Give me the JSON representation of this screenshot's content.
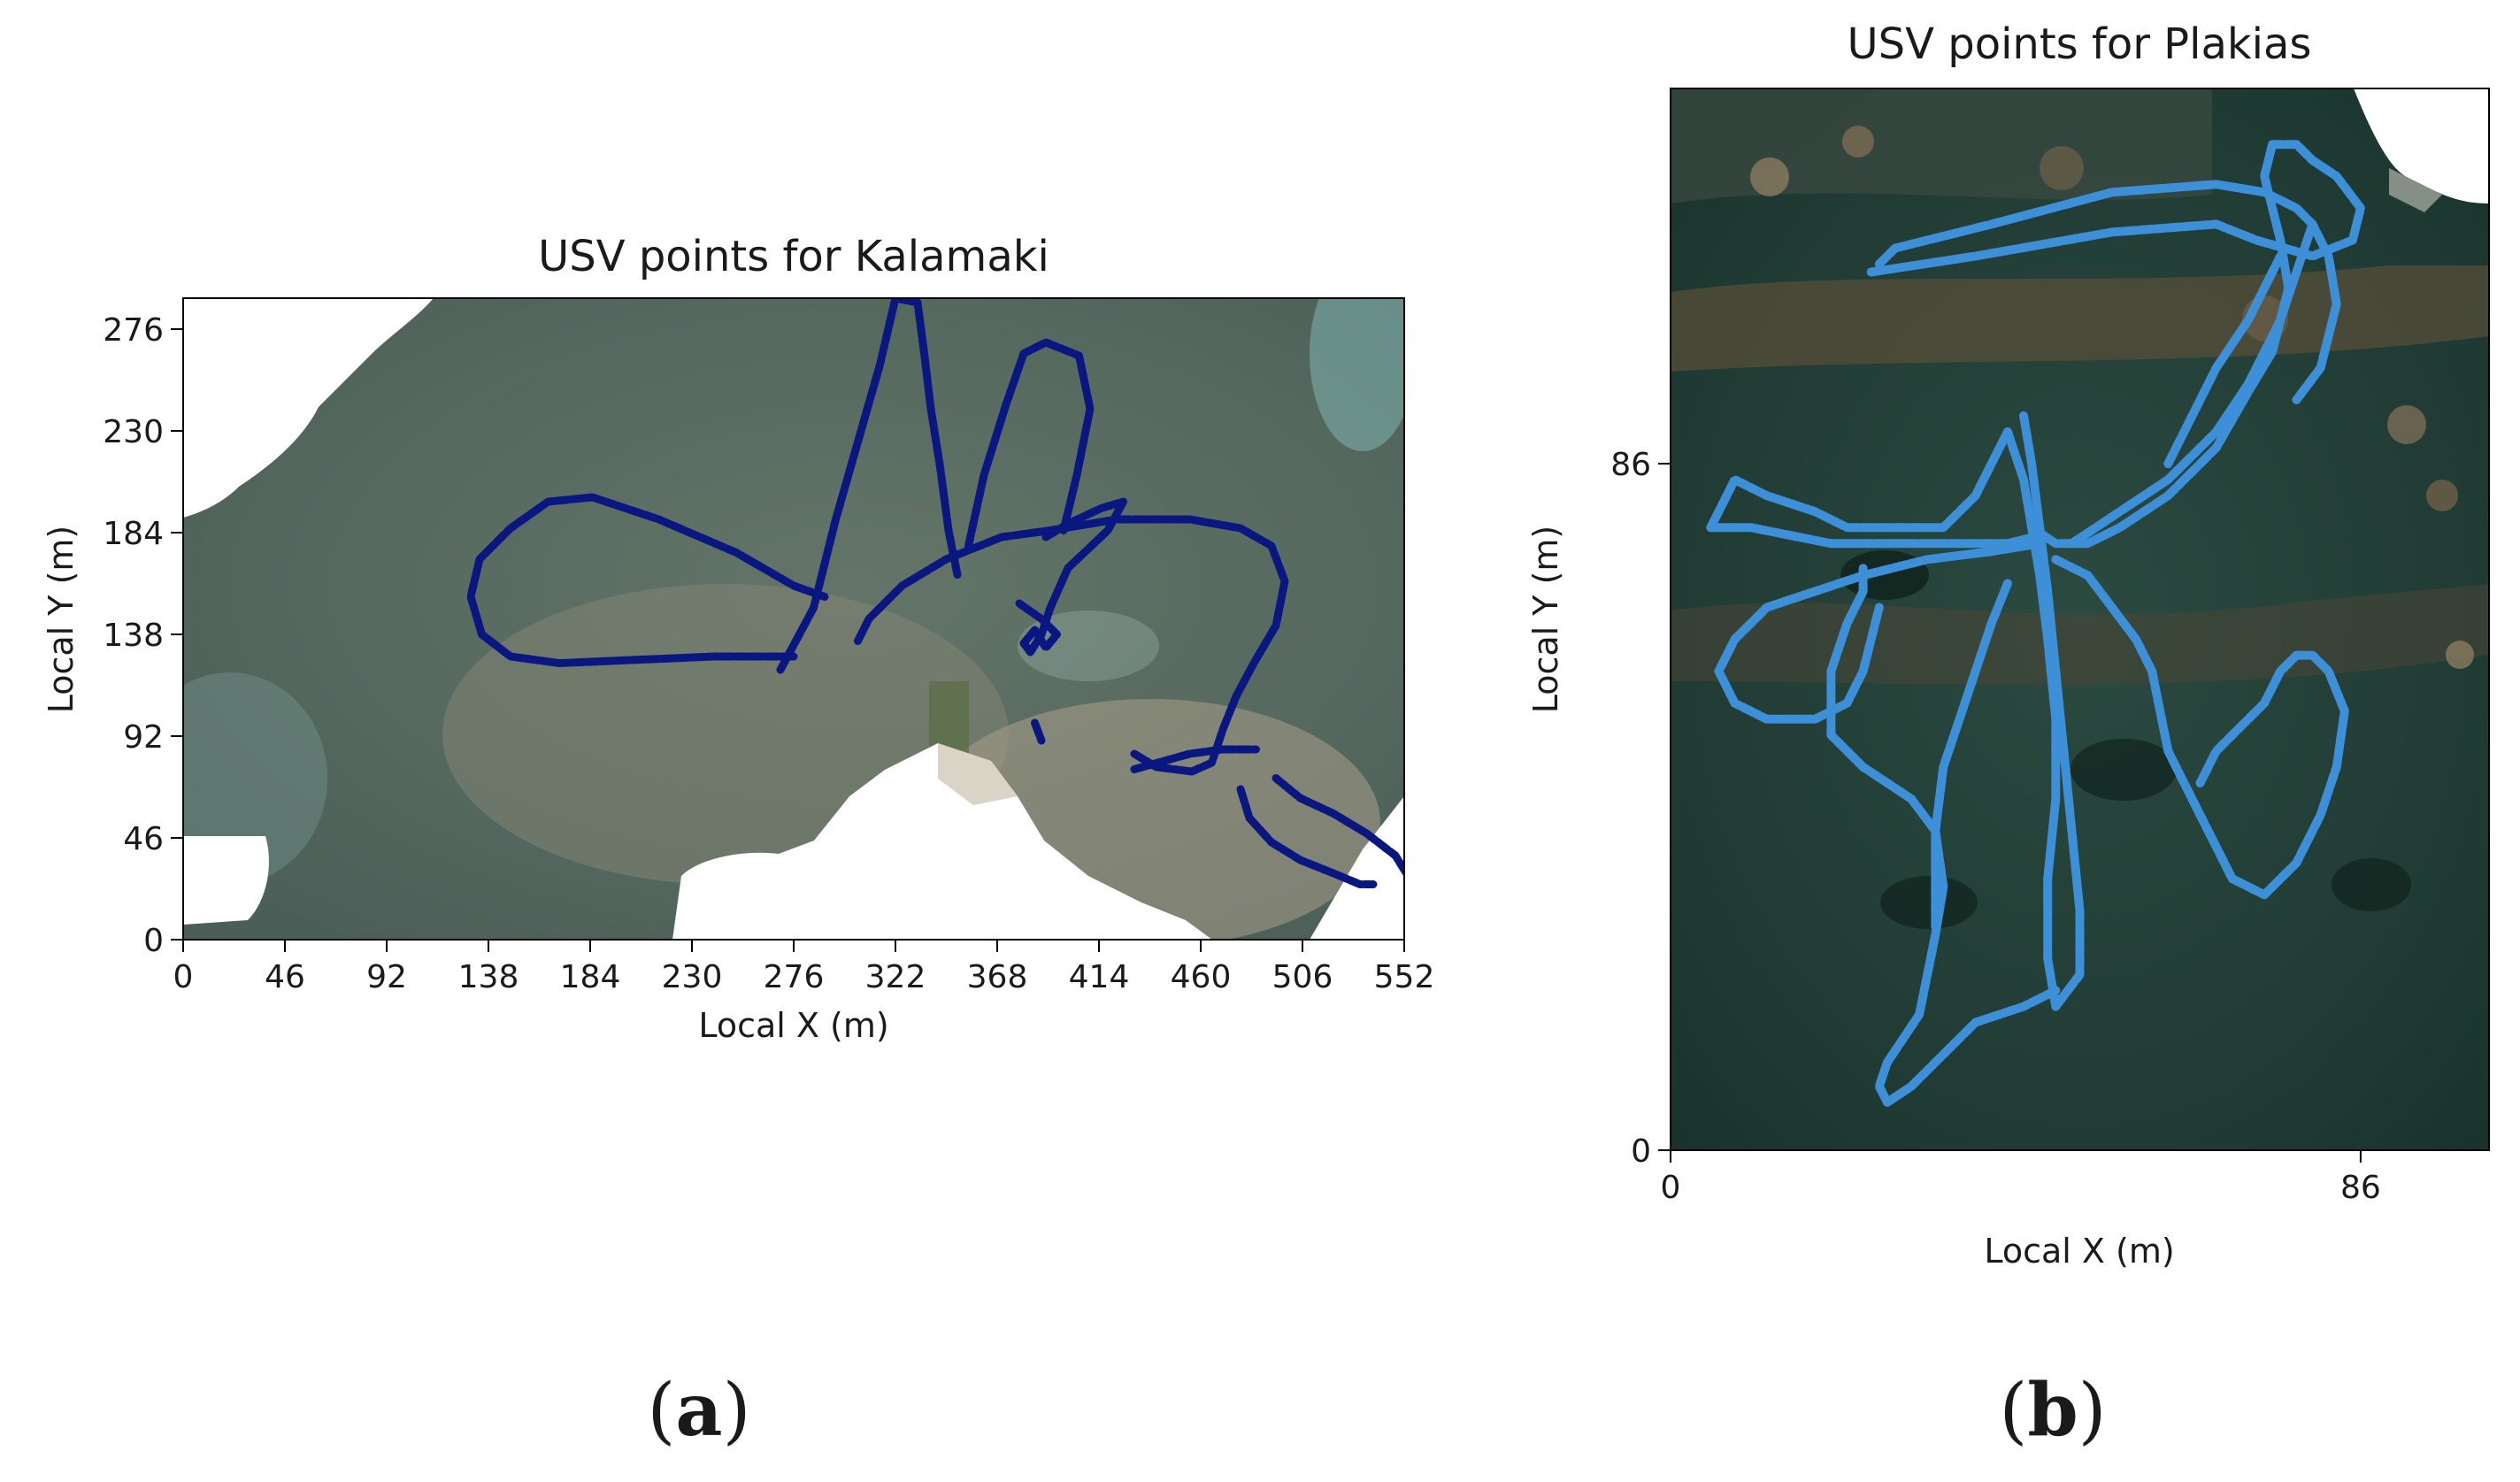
{
  "figure": {
    "panel_labels": [
      {
        "open": "(",
        "letter": "a",
        "close": ")"
      },
      {
        "open": "(",
        "letter": "b",
        "close": ")"
      }
    ]
  },
  "colors": {
    "kalamaki_track": "#0a1780",
    "plakias_track": "#3d8fd8",
    "land_white": "#ffffff",
    "sea_grey_green": "#56695f",
    "deep_water_green": "#1f3a33"
  },
  "chart_data": [
    {
      "type": "scatter",
      "title": "USV points for Kalamaki",
      "xlabel": "Local X (m)",
      "ylabel": "Local Y (m)",
      "xlim": [
        0,
        552
      ],
      "ylim": [
        0,
        290
      ],
      "xticks": [
        "0",
        "46",
        "92",
        "138",
        "184",
        "230",
        "276",
        "322",
        "368",
        "414",
        "460",
        "506",
        "552"
      ],
      "yticks": [
        "0",
        "46",
        "92",
        "138",
        "184",
        "230",
        "276"
      ],
      "background": "satellite image",
      "series": [
        {
          "color": "#0a1780",
          "paths": [
            [
              [
                276,
                128
              ],
              [
                240,
                128
              ],
              [
                170,
                125
              ],
              [
                148,
                128
              ],
              [
                135,
                138
              ],
              [
                130,
                155
              ],
              [
                134,
                172
              ],
              [
                148,
                186
              ],
              [
                165,
                198
              ],
              [
                185,
                200
              ],
              [
                215,
                190
              ],
              [
                250,
                175
              ],
              [
                276,
                160
              ],
              [
                290,
                155
              ]
            ],
            [
              [
                270,
                122
              ],
              [
                285,
                150
              ],
              [
                295,
                190
              ],
              [
                305,
                225
              ],
              [
                315,
                260
              ],
              [
                322,
                290
              ],
              [
                332,
                288
              ],
              [
                335,
                265
              ],
              [
                338,
                240
              ],
              [
                342,
                215
              ],
              [
                346,
                185
              ],
              [
                350,
                165
              ]
            ],
            [
              [
                355,
                178
              ],
              [
                362,
                210
              ],
              [
                372,
                242
              ],
              [
                380,
                265
              ],
              [
                390,
                270
              ],
              [
                405,
                264
              ],
              [
                410,
                240
              ],
              [
                404,
                210
              ],
              [
                398,
                185
              ]
            ],
            [
              [
                390,
                182
              ],
              [
                400,
                188
              ],
              [
                415,
                195
              ],
              [
                425,
                198
              ],
              [
                418,
                185
              ],
              [
                400,
                168
              ],
              [
                392,
                150
              ],
              [
                388,
                138
              ],
              [
                383,
                130
              ],
              [
                380,
                134
              ],
              [
                385,
                140
              ],
              [
                390,
                132
              ],
              [
                395,
                138
              ],
              [
                388,
                145
              ],
              [
                378,
                152
              ]
            ],
            [
              [
                305,
                135
              ],
              [
                310,
                145
              ],
              [
                325,
                160
              ],
              [
                345,
                172
              ],
              [
                370,
                182
              ],
              [
                392,
                185
              ],
              [
                422,
                190
              ],
              [
                455,
                190
              ],
              [
                478,
                186
              ],
              [
                492,
                178
              ],
              [
                498,
                162
              ],
              [
                494,
                142
              ],
              [
                484,
                125
              ],
              [
                476,
                110
              ],
              [
                470,
                95
              ],
              [
                465,
                80
              ],
              [
                456,
                76
              ],
              [
                440,
                78
              ],
              [
                430,
                84
              ]
            ],
            [
              [
                430,
                77
              ],
              [
                455,
                84
              ],
              [
                470,
                86
              ],
              [
                485,
                86
              ]
            ],
            [
              [
                478,
                68
              ],
              [
                482,
                55
              ],
              [
                492,
                44
              ],
              [
                505,
                36
              ],
              [
                520,
                30
              ],
              [
                532,
                25
              ],
              [
                538,
                25
              ]
            ],
            [
              [
                494,
                73
              ],
              [
                505,
                64
              ],
              [
                520,
                57
              ],
              [
                535,
                48
              ],
              [
                548,
                38
              ],
              [
                553,
                30
              ]
            ],
            [
              [
                385,
                98
              ],
              [
                388,
                90
              ]
            ]
          ]
        }
      ]
    },
    {
      "type": "scatter",
      "title": "USV points for Plakias",
      "xlabel": "Local X (m)",
      "ylabel": "Local Y (m)",
      "xlim": [
        0,
        102
      ],
      "ylim": [
        0,
        133
      ],
      "xticks": [
        "0",
        "86"
      ],
      "yticks": [
        "0",
        "86"
      ],
      "background": "satellite image",
      "series": [
        {
          "color": "#3d8fd8",
          "paths": [
            [
              [
                26,
                111
              ],
              [
                28,
                113
              ],
              [
                40,
                116
              ],
              [
                55,
                120
              ],
              [
                68,
                121
              ],
              [
                74,
                120
              ],
              [
                78,
                118
              ],
              [
                80,
                116
              ],
              [
                82,
                112
              ],
              [
                83,
                106
              ],
              [
                81,
                98
              ],
              [
                78,
                94
              ]
            ],
            [
              [
                25,
                110
              ],
              [
                38,
                112
              ],
              [
                55,
                115
              ],
              [
                68,
                116
              ],
              [
                73,
                114
              ],
              [
                80,
                112
              ],
              [
                85,
                114
              ],
              [
                86,
                118
              ],
              [
                83,
                122
              ],
              [
                80,
                124
              ],
              [
                78,
                126
              ],
              [
                75,
                126
              ],
              [
                74,
                122
              ],
              [
                76,
                114
              ],
              [
                77,
                108
              ],
              [
                75,
                100
              ],
              [
                72,
                95
              ],
              [
                68,
                88
              ],
              [
                62,
                82
              ],
              [
                56,
                78
              ],
              [
                52,
                76
              ],
              [
                48,
                76
              ],
              [
                45,
                78
              ],
              [
                44,
                84
              ],
              [
                42,
                90
              ],
              [
                40,
                86
              ],
              [
                38,
                82
              ],
              [
                34,
                78
              ],
              [
                30,
                78
              ],
              [
                22,
                78
              ],
              [
                18,
                80
              ],
              [
                12,
                82
              ],
              [
                8,
                84
              ],
              [
                6,
                80
              ],
              [
                5,
                78
              ]
            ],
            [
              [
                5,
                78
              ],
              [
                10,
                78
              ],
              [
                20,
                76
              ],
              [
                32,
                76
              ],
              [
                42,
                76
              ],
              [
                46,
                77
              ]
            ],
            [
              [
                44,
                92
              ],
              [
                45,
                86
              ],
              [
                46,
                78
              ],
              [
                47,
                70
              ],
              [
                48,
                60
              ],
              [
                49,
                50
              ],
              [
                50,
                40
              ],
              [
                51,
                30
              ],
              [
                51,
                22
              ],
              [
                48,
                18
              ],
              [
                47,
                24
              ],
              [
                47,
                34
              ],
              [
                48,
                44
              ],
              [
                48,
                54
              ],
              [
                47,
                64
              ],
              [
                46,
                72
              ],
              [
                45,
                78
              ]
            ],
            [
              [
                48,
                20
              ],
              [
                44,
                18
              ],
              [
                38,
                16
              ],
              [
                34,
                12
              ],
              [
                30,
                8
              ],
              [
                27,
                6
              ],
              [
                26,
                8
              ],
              [
                27,
                11
              ],
              [
                29,
                14
              ],
              [
                31,
                17
              ],
              [
                32,
                22
              ],
              [
                33,
                27
              ],
              [
                34,
                33
              ],
              [
                33,
                40
              ],
              [
                30,
                44
              ],
              [
                24,
                48
              ],
              [
                20,
                52
              ],
              [
                20,
                60
              ],
              [
                22,
                66
              ],
              [
                24,
                70
              ],
              [
                24,
                73
              ]
            ],
            [
              [
                46,
                76
              ],
              [
                40,
                75
              ],
              [
                32,
                74
              ],
              [
                24,
                72
              ],
              [
                18,
                70
              ],
              [
                12,
                68
              ],
              [
                8,
                64
              ],
              [
                6,
                60
              ],
              [
                8,
                56
              ],
              [
                12,
                54
              ],
              [
                18,
                54
              ],
              [
                22,
                56
              ],
              [
                24,
                60
              ],
              [
                25,
                64
              ],
              [
                26,
                68
              ]
            ],
            [
              [
                33,
                28
              ],
              [
                33,
                40
              ],
              [
                34,
                48
              ],
              [
                36,
                54
              ],
              [
                38,
                60
              ],
              [
                40,
                66
              ],
              [
                42,
                71
              ]
            ],
            [
              [
                48,
                74
              ],
              [
                52,
                72
              ],
              [
                55,
                68
              ],
              [
                58,
                64
              ],
              [
                60,
                60
              ],
              [
                61,
                55
              ],
              [
                62,
                50
              ],
              [
                64,
                46
              ],
              [
                66,
                42
              ],
              [
                68,
                38
              ],
              [
                70,
                34
              ],
              [
                74,
                32
              ],
              [
                78,
                36
              ],
              [
                81,
                42
              ],
              [
                83,
                48
              ],
              [
                84,
                55
              ],
              [
                82,
                60
              ],
              [
                80,
                62
              ],
              [
                78,
                62
              ],
              [
                76,
                60
              ],
              [
                74,
                56
              ],
              [
                70,
                52
              ],
              [
                68,
                50
              ],
              [
                66,
                46
              ]
            ],
            [
              [
                50,
                76
              ],
              [
                56,
                80
              ],
              [
                62,
                84
              ],
              [
                68,
                90
              ],
              [
                72,
                96
              ],
              [
                76,
                104
              ],
              [
                78,
                110
              ],
              [
                80,
                116
              ]
            ],
            [
              [
                62,
                86
              ],
              [
                65,
                92
              ],
              [
                68,
                98
              ],
              [
                72,
                104
              ],
              [
                76,
                112
              ]
            ]
          ]
        }
      ]
    }
  ]
}
